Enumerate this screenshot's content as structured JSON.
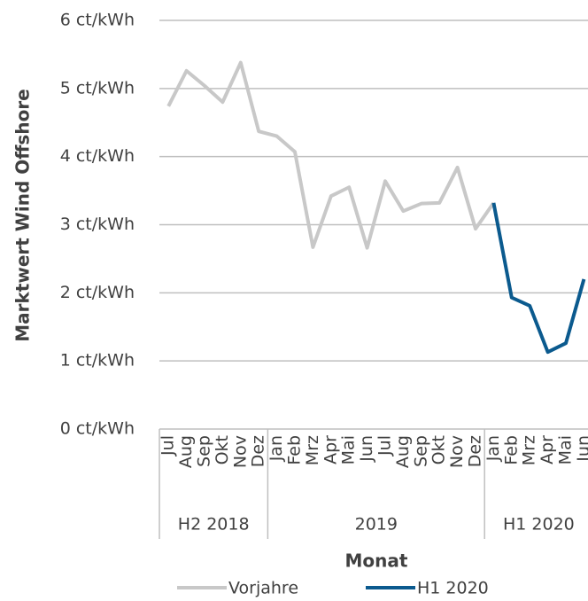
{
  "chart_data": {
    "type": "line",
    "ylabel": "Marktwert Wind Offshore",
    "xlabel": "Monat",
    "categories": [
      "Jul",
      "Aug",
      "Sep",
      "Okt",
      "Nov",
      "Dez",
      "Jan",
      "Feb",
      "Mrz",
      "Apr",
      "Mai",
      "Jun",
      "Jul",
      "Aug",
      "Sep",
      "Okt",
      "Nov",
      "Dez",
      "Jan",
      "Feb",
      "Mrz",
      "Apr",
      "Mai",
      "Jun"
    ],
    "groups": [
      {
        "name": "H2 2018",
        "size": 6
      },
      {
        "name": "2019",
        "size": 12
      },
      {
        "name": "H1 2020",
        "size": 6
      }
    ],
    "series": [
      {
        "name": "Vorjahre",
        "color": "#c8c8c8",
        "values": [
          4.74,
          5.26,
          5.04,
          4.8,
          5.38,
          4.37,
          4.3,
          4.07,
          2.67,
          3.42,
          3.55,
          2.66,
          3.64,
          3.2,
          3.31,
          3.32,
          3.84,
          2.94,
          3.32,
          null,
          null,
          null,
          null,
          null
        ]
      },
      {
        "name": "H1 2020",
        "color": "#0b5a8e",
        "values": [
          null,
          null,
          null,
          null,
          null,
          null,
          null,
          null,
          null,
          null,
          null,
          null,
          null,
          null,
          null,
          null,
          null,
          null,
          3.32,
          1.93,
          1.81,
          1.13,
          1.26,
          2.2
        ]
      }
    ],
    "ylim": [
      0,
      6
    ],
    "yticks": [
      {
        "value": 0,
        "label": "0 ct/kWh"
      },
      {
        "value": 1,
        "label": "1 ct/kWh"
      },
      {
        "value": 2,
        "label": "2 ct/kWh"
      },
      {
        "value": 3,
        "label": "3 ct/kWh"
      },
      {
        "value": 4,
        "label": "4 ct/kWh"
      },
      {
        "value": 5,
        "label": "5 ct/kWh"
      },
      {
        "value": 6,
        "label": "6 ct/kWh"
      }
    ],
    "grid": true,
    "legend": "bottom"
  }
}
